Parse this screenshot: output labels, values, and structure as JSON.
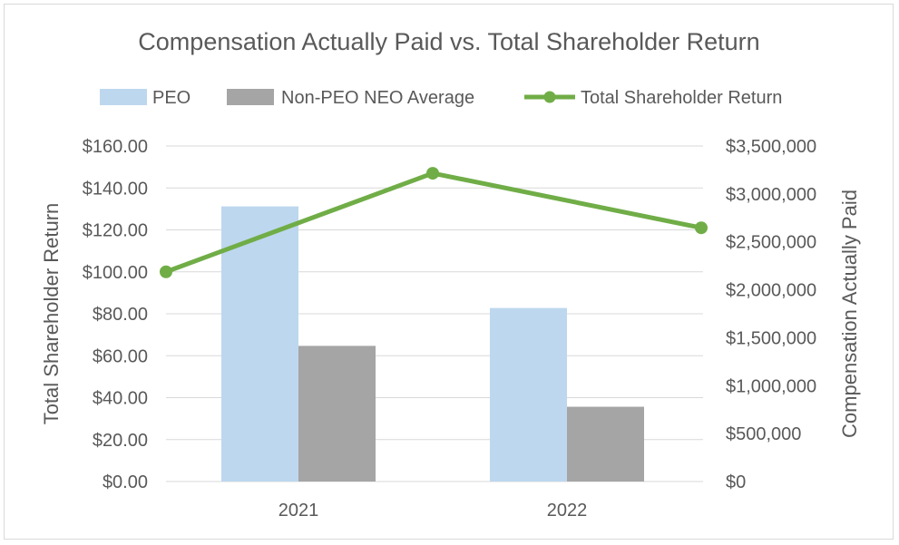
{
  "chart_data": {
    "type": "bar",
    "title": "Compensation Actually Paid vs. Total Shareholder Return",
    "categories": [
      "2021",
      "2022"
    ],
    "series": [
      {
        "name": "PEO",
        "type": "bar",
        "axis": "right",
        "color": "#bdd7ee",
        "values": [
          2870000,
          1810000
        ]
      },
      {
        "name": "Non-PEO NEO Average",
        "type": "bar",
        "axis": "right",
        "color": "#a5a5a5",
        "values": [
          1415000,
          780000
        ]
      },
      {
        "name": "Total Shareholder Return",
        "type": "line",
        "axis": "left",
        "color": "#70ad47",
        "x": [
          0,
          1,
          2
        ],
        "values": [
          100.0,
          147.0,
          121.0
        ]
      }
    ],
    "left_axis": {
      "label": "Total Shareholder Return",
      "min": 0,
      "max": 160,
      "step": 20,
      "tick_labels": [
        "$0.00",
        "$20.00",
        "$40.00",
        "$60.00",
        "$80.00",
        "$100.00",
        "$120.00",
        "$140.00",
        "$160.00"
      ]
    },
    "right_axis": {
      "label": "Compensation Actually Paid",
      "min": 0,
      "max": 3500000,
      "step": 500000,
      "tick_labels": [
        "$0",
        "$500,000",
        "$1,000,000",
        "$1,500,000",
        "$2,000,000",
        "$2,500,000",
        "$3,000,000",
        "$3,500,000"
      ]
    },
    "legend": {
      "position": "top",
      "entries": [
        "PEO",
        "Non-PEO NEO Average",
        "Total Shareholder Return"
      ]
    },
    "grid": true,
    "gridline_color": "#d9d9d9"
  }
}
